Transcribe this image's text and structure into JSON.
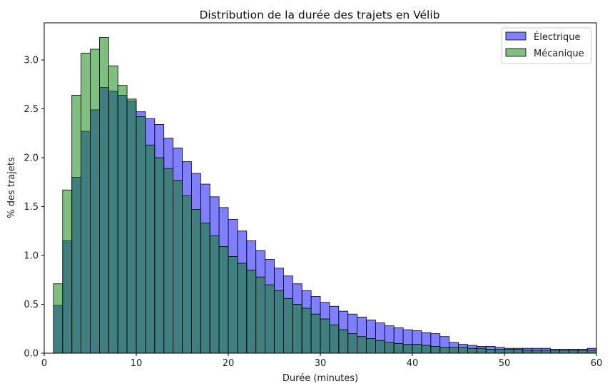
{
  "chart_data": {
    "type": "bar",
    "title": "Distribution de la durée des trajets en Vélib",
    "xlabel": "Durée (minutes)",
    "ylabel": "% des trajets",
    "xlim": [
      0,
      60
    ],
    "ylim": [
      0,
      3.38
    ],
    "xticks": [
      0,
      10,
      20,
      30,
      40,
      50,
      60
    ],
    "yticks": [
      0.0,
      0.5,
      1.0,
      1.5,
      2.0,
      2.5,
      3.0
    ],
    "ytick_labels": [
      "0.0",
      "0.5",
      "1.0",
      "1.5",
      "2.0",
      "2.5",
      "3.0"
    ],
    "legend_position": "top-right",
    "bin_start": 1,
    "bin_width": 1,
    "series": [
      {
        "name": "Électrique",
        "color": "#0000ff",
        "opacity": 0.5,
        "values": [
          0.49,
          1.15,
          1.8,
          2.27,
          2.49,
          2.72,
          2.68,
          2.64,
          2.58,
          2.47,
          2.4,
          2.34,
          2.2,
          2.1,
          1.96,
          1.84,
          1.73,
          1.6,
          1.49,
          1.37,
          1.25,
          1.15,
          1.05,
          0.96,
          0.87,
          0.79,
          0.71,
          0.64,
          0.58,
          0.52,
          0.48,
          0.43,
          0.4,
          0.37,
          0.34,
          0.31,
          0.28,
          0.26,
          0.24,
          0.23,
          0.21,
          0.2,
          0.17,
          0.11,
          0.09,
          0.08,
          0.07,
          0.07,
          0.06,
          0.05,
          0.05,
          0.05,
          0.05,
          0.05,
          0.04,
          0.04,
          0.04,
          0.04,
          0.05
        ]
      },
      {
        "name": "Mécanique",
        "color": "#008000",
        "opacity": 0.5,
        "values": [
          0.71,
          1.67,
          2.64,
          3.07,
          3.11,
          3.23,
          2.94,
          2.74,
          2.6,
          2.42,
          2.13,
          2.0,
          1.89,
          1.77,
          1.61,
          1.47,
          1.33,
          1.2,
          1.09,
          0.99,
          0.92,
          0.85,
          0.78,
          0.7,
          0.64,
          0.56,
          0.5,
          0.46,
          0.4,
          0.35,
          0.29,
          0.24,
          0.2,
          0.17,
          0.15,
          0.13,
          0.11,
          0.1,
          0.09,
          0.09,
          0.08,
          0.07,
          0.06,
          0.06,
          0.06,
          0.05,
          0.05,
          0.04,
          0.04,
          0.04,
          0.04,
          0.03,
          0.03,
          0.03,
          0.03,
          0.03,
          0.03,
          0.03,
          0.03
        ]
      }
    ]
  }
}
